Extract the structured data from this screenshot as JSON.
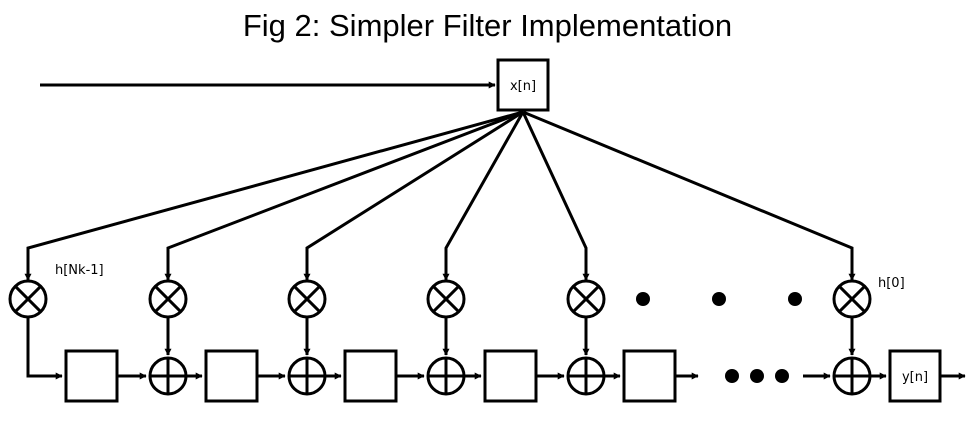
{
  "title": "Fig 2: Simpler Filter Implementation",
  "input_label": "x[n]",
  "output_label": "y[n]",
  "coeff_first_label": "h[Nk-1]",
  "coeff_last_label": "h[0]"
}
